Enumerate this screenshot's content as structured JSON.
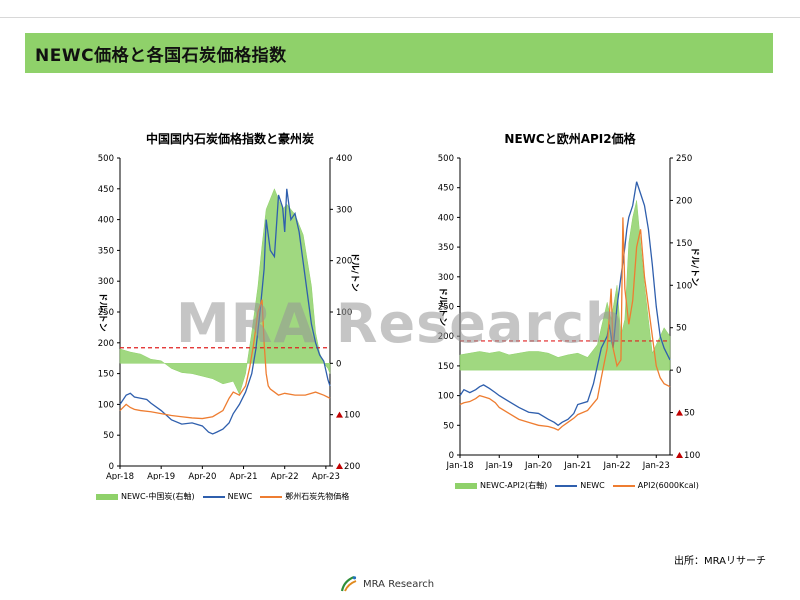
{
  "header": {
    "title": "NEWC価格と各国石炭価格指数"
  },
  "watermark": "MRA Research",
  "source": "出所：MRAリサーチ",
  "footer": {
    "logo_text": "MRA Research"
  },
  "colors": {
    "header_bg": "#8fd16a",
    "area": "#8fd16a",
    "newc": "#2f5fad",
    "orange": "#ee7d31",
    "reference_line": "#e02020",
    "negative_marker": "#c00000"
  },
  "chart_data": [
    {
      "type": "line",
      "title": "中国国内石炭価格指数と豪州炭",
      "ylabel": "ドル/トン",
      "y2label": "ドル/トン",
      "ylim": [
        0,
        500
      ],
      "y2lim": [
        -200,
        400
      ],
      "y_ticks": [
        "500",
        "450",
        "400",
        "350",
        "300",
        "250",
        "200",
        "150",
        "100",
        "50",
        "0"
      ],
      "y2_ticks": [
        {
          "label": "400",
          "negative": false
        },
        {
          "label": "300",
          "negative": false
        },
        {
          "label": "200",
          "negative": false
        },
        {
          "label": "100",
          "negative": false
        },
        {
          "label": "0",
          "negative": false
        },
        {
          "label": "100",
          "negative": true
        },
        {
          "label": "200",
          "negative": true
        }
      ],
      "x_ticks": [
        "Apr-18",
        "Apr-19",
        "Apr-20",
        "Apr-21",
        "Apr-22",
        "Apr-23"
      ],
      "reference_line_y": 192,
      "area": {
        "name": "NEWC-中国炭(右軸)",
        "axis": "right",
        "x": [
          2018.25,
          2018.5,
          2018.75,
          2019.0,
          2019.25,
          2019.5,
          2019.75,
          2020.0,
          2020.25,
          2020.5,
          2020.75,
          2021.0,
          2021.15,
          2021.3,
          2021.45,
          2021.6,
          2021.7,
          2021.8,
          2021.9,
          2022.0,
          2022.1,
          2022.2,
          2022.3,
          2022.4,
          2022.5,
          2022.6,
          2022.7,
          2022.8,
          2022.9,
          2023.0,
          2023.1,
          2023.2,
          2023.3,
          2023.35
        ],
        "values": [
          28,
          22,
          18,
          8,
          5,
          -10,
          -18,
          -20,
          -25,
          -30,
          -40,
          -35,
          -60,
          -20,
          60,
          150,
          230,
          300,
          320,
          340,
          320,
          300,
          310,
          300,
          290,
          270,
          250,
          200,
          150,
          60,
          20,
          0,
          -10,
          -20
        ]
      },
      "series": [
        {
          "name": "NEWC",
          "axis": "left",
          "x": [
            2018.25,
            2018.4,
            2018.5,
            2018.6,
            2018.75,
            2018.9,
            2019.0,
            2019.25,
            2019.5,
            2019.75,
            2020.0,
            2020.25,
            2020.4,
            2020.5,
            2020.6,
            2020.75,
            2020.9,
            2021.0,
            2021.15,
            2021.3,
            2021.45,
            2021.55,
            2021.65,
            2021.75,
            2021.8,
            2021.9,
            2022.0,
            2022.1,
            2022.2,
            2022.25,
            2022.3,
            2022.4,
            2022.5,
            2022.6,
            2022.7,
            2022.8,
            2022.9,
            2023.0,
            2023.1,
            2023.2,
            2023.3,
            2023.35
          ],
          "values": [
            100,
            115,
            118,
            112,
            110,
            108,
            102,
            90,
            75,
            68,
            70,
            65,
            55,
            52,
            55,
            60,
            70,
            85,
            100,
            120,
            150,
            190,
            250,
            320,
            400,
            350,
            340,
            440,
            420,
            380,
            450,
            400,
            410,
            380,
            330,
            280,
            230,
            200,
            180,
            170,
            140,
            130
          ]
        },
        {
          "name": "鄭州石炭先物価格",
          "axis": "left",
          "x": [
            2018.25,
            2018.4,
            2018.5,
            2018.6,
            2018.75,
            2019.0,
            2019.25,
            2019.5,
            2019.75,
            2020.0,
            2020.25,
            2020.5,
            2020.75,
            2020.9,
            2021.0,
            2021.15,
            2021.3,
            2021.4,
            2021.5,
            2021.6,
            2021.7,
            2021.75,
            2021.8,
            2021.85,
            2021.9,
            2022.0,
            2022.1,
            2022.25,
            2022.5,
            2022.75,
            2023.0,
            2023.2,
            2023.35
          ],
          "values": [
            90,
            100,
            95,
            92,
            90,
            88,
            85,
            82,
            80,
            78,
            77,
            80,
            90,
            110,
            120,
            115,
            130,
            160,
            200,
            250,
            270,
            200,
            150,
            130,
            125,
            120,
            115,
            118,
            115,
            115,
            120,
            115,
            110
          ]
        }
      ]
    },
    {
      "type": "line",
      "title": "NEWCと欧州API2価格",
      "ylabel": "ドル/トン",
      "y2label": "ドル/トン",
      "ylim": [
        0,
        500
      ],
      "y2lim": [
        -100,
        250
      ],
      "y_ticks": [
        "500",
        "450",
        "400",
        "350",
        "300",
        "250",
        "200",
        "150",
        "100",
        "50",
        "0"
      ],
      "y2_ticks": [
        {
          "label": "250",
          "negative": false
        },
        {
          "label": "200",
          "negative": false
        },
        {
          "label": "150",
          "negative": false
        },
        {
          "label": "100",
          "negative": false
        },
        {
          "label": "50",
          "negative": false
        },
        {
          "label": "0",
          "negative": false
        },
        {
          "label": "50",
          "negative": true
        },
        {
          "label": "100",
          "negative": true
        }
      ],
      "x_ticks": [
        "Jan-18",
        "Jan-19",
        "Jan-20",
        "Jan-21",
        "Jan-22",
        "Jan-23"
      ],
      "reference_line_y": 192,
      "area": {
        "name": "NEWC-API2(右軸)",
        "axis": "right",
        "x": [
          2018.0,
          2018.25,
          2018.5,
          2018.75,
          2019.0,
          2019.25,
          2019.5,
          2019.75,
          2020.0,
          2020.25,
          2020.5,
          2020.75,
          2021.0,
          2021.25,
          2021.5,
          2021.75,
          2021.85,
          2022.0,
          2022.1,
          2022.2,
          2022.3,
          2022.4,
          2022.5,
          2022.6,
          2022.7,
          2022.8,
          2022.9,
          2023.0,
          2023.1,
          2023.2,
          2023.35
        ],
        "values": [
          18,
          20,
          22,
          20,
          22,
          18,
          20,
          22,
          22,
          20,
          15,
          18,
          20,
          15,
          30,
          80,
          60,
          100,
          40,
          60,
          150,
          180,
          200,
          150,
          100,
          60,
          20,
          30,
          40,
          50,
          40
        ]
      },
      "series": [
        {
          "name": "NEWC",
          "axis": "left",
          "x": [
            2018.0,
            2018.1,
            2018.25,
            2018.4,
            2018.5,
            2018.6,
            2018.75,
            2018.9,
            2019.0,
            2019.25,
            2019.5,
            2019.75,
            2020.0,
            2020.25,
            2020.4,
            2020.5,
            2020.6,
            2020.75,
            2020.9,
            2021.0,
            2021.25,
            2021.4,
            2021.5,
            2021.6,
            2021.75,
            2021.8,
            2021.9,
            2022.0,
            2022.1,
            2022.2,
            2022.25,
            2022.3,
            2022.4,
            2022.5,
            2022.6,
            2022.7,
            2022.8,
            2022.9,
            2023.0,
            2023.1,
            2023.2,
            2023.35
          ],
          "values": [
            100,
            110,
            105,
            110,
            115,
            118,
            112,
            105,
            100,
            90,
            80,
            72,
            70,
            60,
            55,
            50,
            55,
            60,
            70,
            85,
            90,
            120,
            150,
            180,
            200,
            220,
            180,
            250,
            300,
            350,
            380,
            400,
            420,
            460,
            440,
            420,
            380,
            320,
            250,
            200,
            180,
            160
          ]
        },
        {
          "name": "API2(6000Kcal)",
          "axis": "left",
          "x": [
            2018.0,
            2018.1,
            2018.25,
            2018.4,
            2018.5,
            2018.6,
            2018.75,
            2018.9,
            2019.0,
            2019.25,
            2019.5,
            2019.75,
            2020.0,
            2020.25,
            2020.4,
            2020.5,
            2020.6,
            2020.75,
            2020.9,
            2021.0,
            2021.25,
            2021.5,
            2021.6,
            2021.75,
            2021.85,
            2021.9,
            2022.0,
            2022.1,
            2022.15,
            2022.2,
            2022.3,
            2022.4,
            2022.5,
            2022.6,
            2022.7,
            2022.8,
            2022.9,
            2023.0,
            2023.1,
            2023.2,
            2023.35
          ],
          "values": [
            85,
            88,
            90,
            95,
            100,
            98,
            95,
            88,
            80,
            70,
            60,
            55,
            50,
            48,
            45,
            42,
            48,
            55,
            62,
            68,
            75,
            95,
            130,
            180,
            280,
            180,
            150,
            160,
            400,
            280,
            220,
            260,
            350,
            380,
            300,
            250,
            200,
            150,
            130,
            120,
            115
          ]
        }
      ]
    }
  ]
}
